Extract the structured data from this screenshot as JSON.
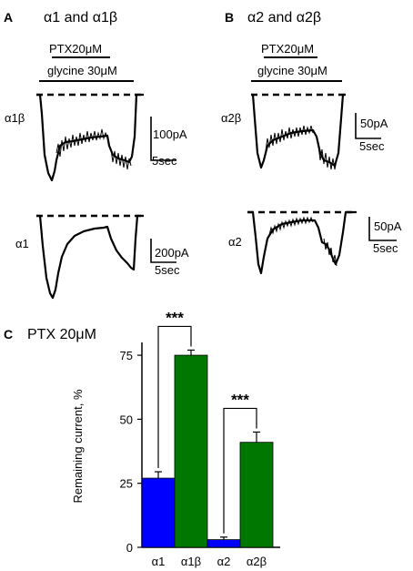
{
  "panels": {
    "a": {
      "letter": "A",
      "title": "α1 and α1β"
    },
    "b": {
      "letter": "B",
      "title": "α2 and α2β"
    },
    "c": {
      "letter": "C",
      "title": "PTX 20μM"
    }
  },
  "bars": {
    "ptx": "PTX20μM",
    "glycine": "glycine 30μM"
  },
  "traces": {
    "a1b": {
      "label": "α1β",
      "scale_current": "100pA",
      "scale_time": "5sec"
    },
    "a1": {
      "label": "α1",
      "scale_current": "200pA",
      "scale_time": "5sec"
    },
    "a2b": {
      "label": "α2β",
      "scale_current": "50pA",
      "scale_time": "5sec"
    },
    "a2": {
      "label": "α2",
      "scale_current": "50pA",
      "scale_time": "5sec"
    }
  },
  "chart_data": {
    "type": "bar",
    "title": "PTX 20μM",
    "xlabel": "",
    "ylabel": "Remaining current, %",
    "categories": [
      "α1",
      "α1β",
      "α2",
      "α2β"
    ],
    "values": [
      27,
      75,
      3,
      41
    ],
    "errors": [
      2.5,
      2,
      1,
      4
    ],
    "colors": [
      "#0000ff",
      "#007700",
      "#0000ff",
      "#007700"
    ],
    "ylim": [
      0,
      80
    ],
    "yticks": [
      "0",
      "25",
      "50",
      "75"
    ],
    "ytick_values": [
      0,
      25,
      50,
      75
    ],
    "grid": false,
    "significance": [
      {
        "between": [
          "α1",
          "α1β"
        ],
        "label": "***"
      },
      {
        "between": [
          "α2",
          "α2β"
        ],
        "label": "***"
      }
    ]
  }
}
